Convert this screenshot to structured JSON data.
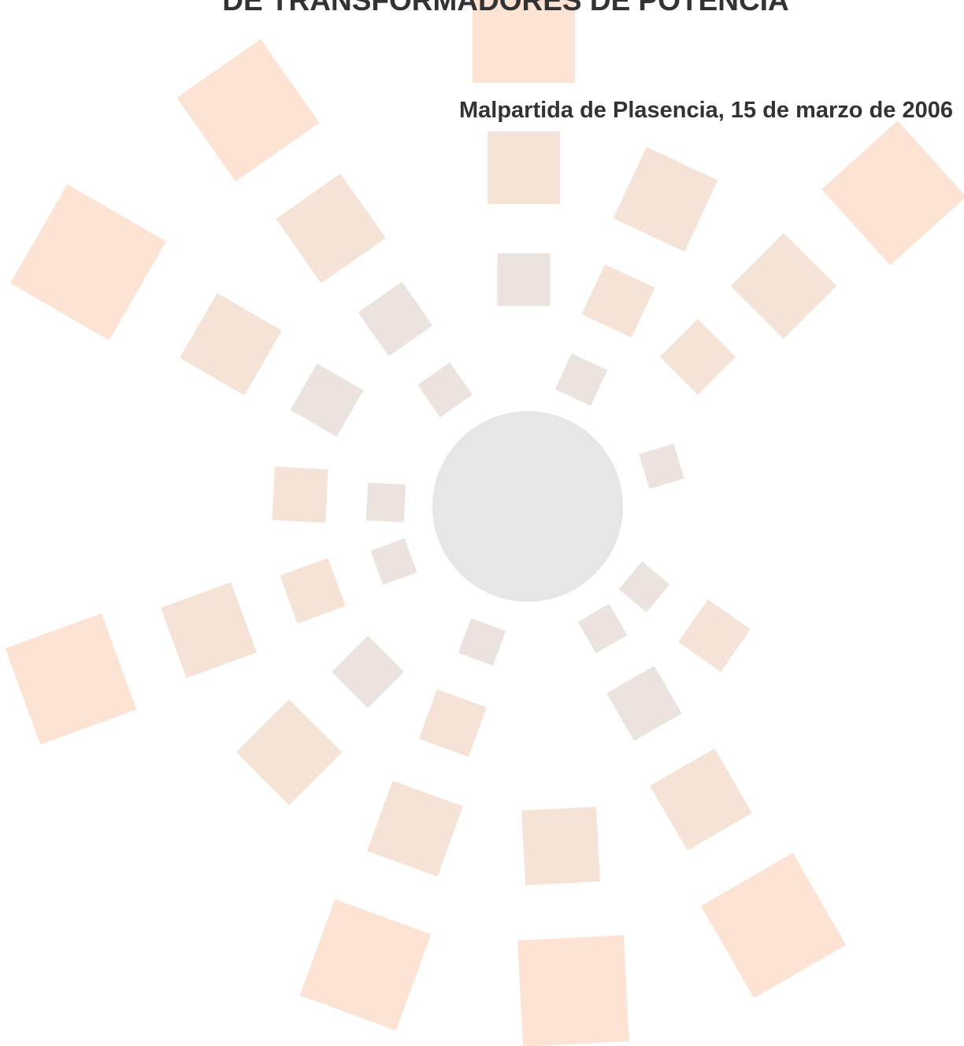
{
  "header": {
    "title": "DE TRANSFORMADORES DE POTENCIA",
    "date_line": "Malpartida de Plasencia, 15 de marzo de 2006"
  }
}
